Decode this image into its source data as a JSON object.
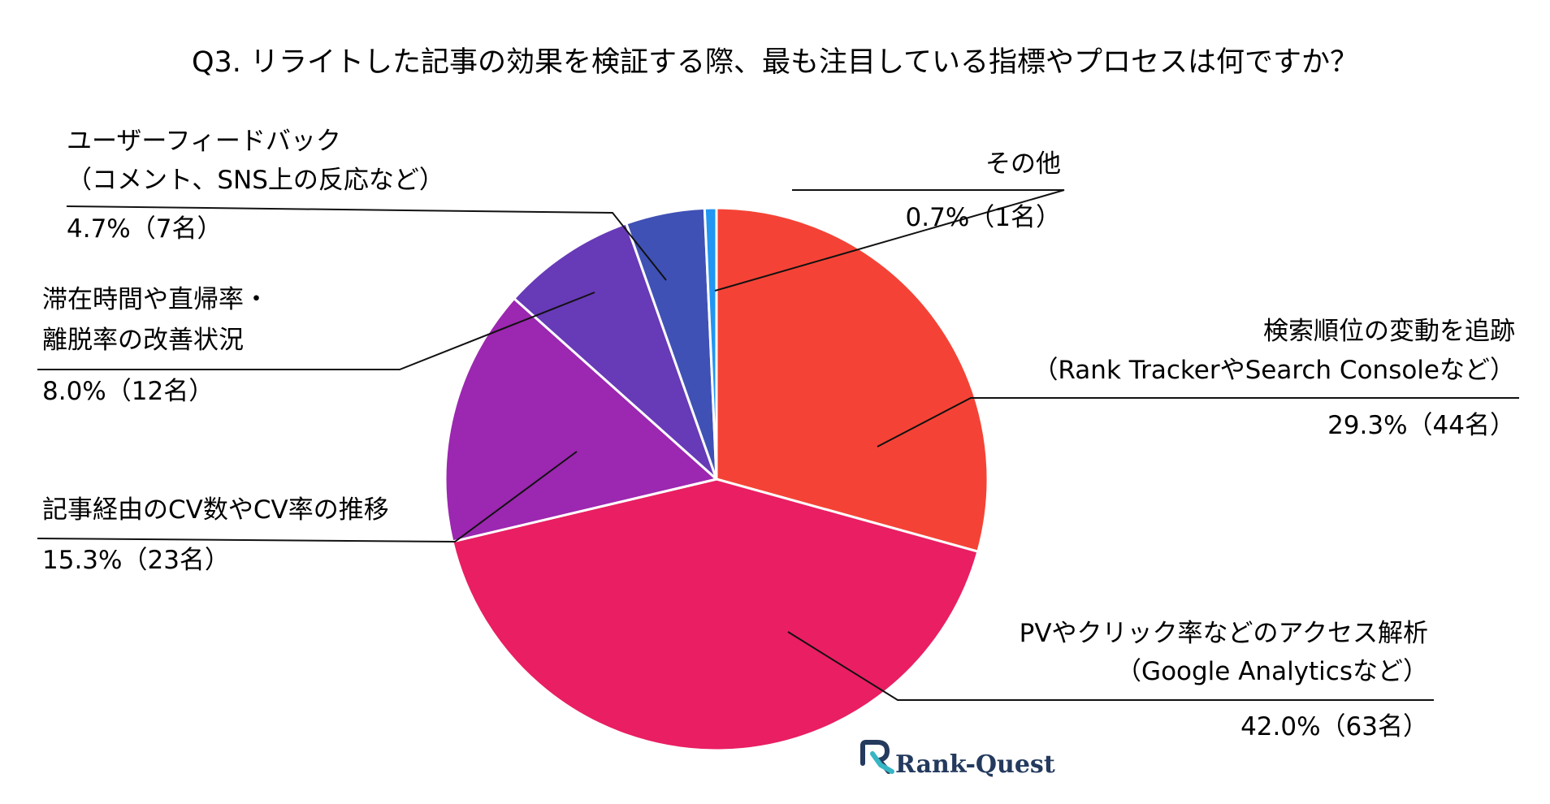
{
  "chart_data": {
    "type": "pie",
    "title": "Q3. リライトした記事の効果を検証する際、最も注目している指標やプロセスは何ですか？",
    "unit": "名",
    "slices": [
      {
        "lines": [
          "検索順位の変動を追跡",
          "（Rank TrackerやSearch Consoleなど）"
        ],
        "value_label": "29.3%（44名）",
        "percent": 29.3,
        "count": 44,
        "color": "#f44336"
      },
      {
        "lines": [
          "PVやクリック率などのアクセス解析",
          "（Google Analyticsなど）"
        ],
        "value_label": "42.0%（63名）",
        "percent": 42.0,
        "count": 63,
        "color": "#e91e63"
      },
      {
        "lines": [
          "記事経由のCV数やCV率の推移"
        ],
        "value_label": "15.3%（23名）",
        "percent": 15.3,
        "count": 23,
        "color": "#9c27b0"
      },
      {
        "lines": [
          "滞在時間や直帰率・",
          "離脱率の改善状況"
        ],
        "value_label": "8.0%（12名）",
        "percent": 8.0,
        "count": 12,
        "color": "#673ab7"
      },
      {
        "lines": [
          "ユーザーフィードバック",
          "（コメント、SNS上の反応など）"
        ],
        "value_label": "4.7%（7名）",
        "percent": 4.7,
        "count": 7,
        "color": "#3f51b5"
      },
      {
        "lines": [
          "その他"
        ],
        "value_label": "0.7%（1名）",
        "percent": 0.7,
        "count": 1,
        "color": "#2196f3"
      }
    ],
    "start_angle": "12 o'clock",
    "direction": "clockwise"
  },
  "brand": {
    "name": "Rank-Quest",
    "logo_icon": "rank-quest-logo-icon",
    "colors": {
      "dark": "#243a5e",
      "accent": "#37b6c4"
    }
  }
}
